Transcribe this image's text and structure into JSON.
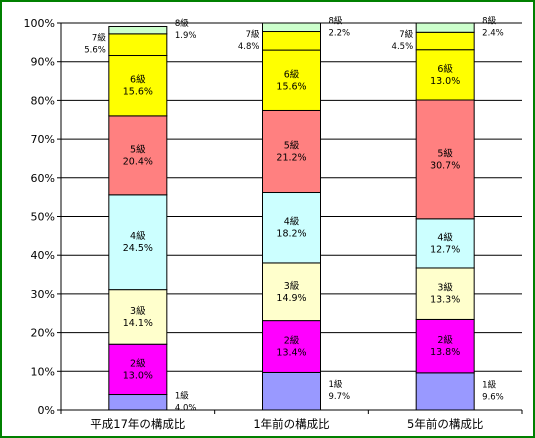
{
  "chart_data": {
    "type": "bar",
    "stacked": true,
    "categories": [
      "平成17年の構成比",
      "1年前の構成比",
      "5年前の構成比"
    ],
    "ylim": [
      0,
      100
    ],
    "yticks": [
      "0%",
      "10%",
      "20%",
      "30%",
      "40%",
      "50%",
      "60%",
      "70%",
      "80%",
      "90%",
      "100%"
    ],
    "grid": true,
    "series": [
      {
        "name": "1級",
        "color": "#9999ff",
        "values": [
          4.0,
          9.7,
          9.6
        ],
        "value_labels": [
          "4.0%",
          "9.7%",
          "9.6%"
        ],
        "label_side": true
      },
      {
        "name": "2級",
        "color": "#ff00ff",
        "values": [
          13.0,
          13.4,
          13.8
        ],
        "value_labels": [
          "13.0%",
          "13.4%",
          "13.8%"
        ]
      },
      {
        "name": "3級",
        "color": "#ffffcc",
        "values": [
          14.1,
          14.9,
          13.3
        ],
        "value_labels": [
          "14.1%",
          "14.9%",
          "13.3%"
        ]
      },
      {
        "name": "4級",
        "color": "#ccffff",
        "values": [
          24.5,
          18.2,
          12.7
        ],
        "value_labels": [
          "24.5%",
          "18.2%",
          "12.7%"
        ]
      },
      {
        "name": "5級",
        "color": "#ff8080",
        "values": [
          20.4,
          21.2,
          30.7
        ],
        "value_labels": [
          "20.4%",
          "21.2%",
          "30.7%"
        ]
      },
      {
        "name": "6級",
        "color": "#ffff00",
        "values": [
          15.6,
          15.6,
          13.0
        ],
        "value_labels": [
          "15.6%",
          "15.6%",
          "13.0%"
        ]
      },
      {
        "name": "7級",
        "color": "#ffff00",
        "values": [
          5.6,
          4.8,
          4.5
        ],
        "value_labels": [
          "5.6%",
          "4.8%",
          "4.5%"
        ],
        "label_side": "left"
      },
      {
        "name": "8級",
        "color": "#ccffcc",
        "values": [
          1.9,
          2.2,
          2.4
        ],
        "value_labels": [
          "1.9%",
          "2.2%",
          "2.4%"
        ],
        "label_side": true
      }
    ]
  }
}
